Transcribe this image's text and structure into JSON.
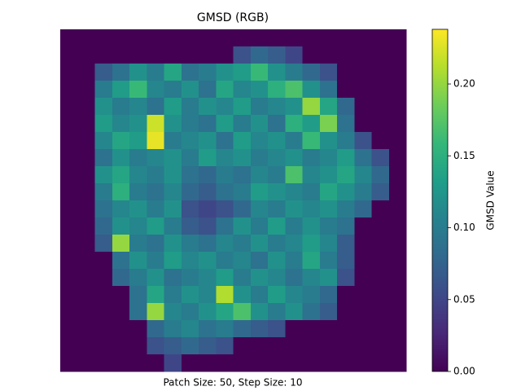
{
  "chart_data": {
    "type": "heatmap",
    "title": "GMSD (RGB)",
    "xlabel": "Patch Size: 50, Step Size: 10",
    "colorbar_label": "GMSD Value",
    "colormap": "viridis",
    "zlim": [
      0,
      0.238
    ],
    "zticks": [
      {
        "value": 0,
        "label": "0.00"
      },
      {
        "value": 0.05,
        "label": "0.05"
      },
      {
        "value": 0.1,
        "label": "0.10"
      },
      {
        "value": 0.15,
        "label": "0.15"
      },
      {
        "value": 0.2,
        "label": "0.20"
      }
    ],
    "values": [
      [
        0,
        0,
        0,
        0,
        0,
        0,
        0,
        0,
        0,
        0,
        0,
        0,
        0,
        0,
        0,
        0,
        0,
        0,
        0,
        0
      ],
      [
        0,
        0,
        0,
        0,
        0,
        0,
        0,
        0,
        0,
        0,
        0.06,
        0.08,
        0.07,
        0.05,
        0,
        0,
        0,
        0,
        0,
        0
      ],
      [
        0,
        0,
        0.07,
        0.09,
        0.12,
        0.1,
        0.14,
        0.09,
        0.1,
        0.12,
        0.13,
        0.16,
        0.12,
        0.1,
        0.08,
        0.06,
        0,
        0,
        0,
        0
      ],
      [
        0,
        0,
        0.1,
        0.13,
        0.16,
        0.11,
        0.1,
        0.12,
        0.09,
        0.14,
        0.11,
        0.12,
        0.15,
        0.17,
        0.12,
        0.09,
        0,
        0,
        0,
        0
      ],
      [
        0,
        0,
        0.12,
        0.1,
        0.11,
        0.09,
        0.13,
        0.1,
        0.12,
        0.11,
        0.13,
        0.1,
        0.11,
        0.12,
        0.2,
        0.14,
        0.08,
        0,
        0,
        0
      ],
      [
        0,
        0,
        0.13,
        0.11,
        0.12,
        0.22,
        0.12,
        0.1,
        0.09,
        0.13,
        0.1,
        0.12,
        0.09,
        0.15,
        0.13,
        0.19,
        0.09,
        0,
        0,
        0
      ],
      [
        0,
        0,
        0.11,
        0.14,
        0.13,
        0.23,
        0.1,
        0.11,
        0.12,
        0.09,
        0.13,
        0.11,
        0.12,
        0.1,
        0.16,
        0.12,
        0.1,
        0.06,
        0,
        0
      ],
      [
        0,
        0,
        0.09,
        0.12,
        0.1,
        0.11,
        0.12,
        0.1,
        0.13,
        0.11,
        0.12,
        0.1,
        0.11,
        0.12,
        0.1,
        0.11,
        0.13,
        0.09,
        0.06,
        0
      ],
      [
        0,
        0,
        0.12,
        0.14,
        0.11,
        0.1,
        0.12,
        0.09,
        0.08,
        0.1,
        0.09,
        0.11,
        0.1,
        0.17,
        0.11,
        0.12,
        0.14,
        0.11,
        0.08,
        0
      ],
      [
        0,
        0,
        0.1,
        0.15,
        0.1,
        0.09,
        0.11,
        0.08,
        0.07,
        0.09,
        0.1,
        0.13,
        0.12,
        0.11,
        0.1,
        0.14,
        0.12,
        0.1,
        0.07,
        0
      ],
      [
        0,
        0,
        0.09,
        0.11,
        0.12,
        0.1,
        0.12,
        0.06,
        0.05,
        0.06,
        0.08,
        0.11,
        0.1,
        0.12,
        0.11,
        0.12,
        0.1,
        0.08,
        0,
        0
      ],
      [
        0,
        0,
        0.08,
        0.12,
        0.11,
        0.13,
        0.1,
        0.07,
        0.06,
        0.09,
        0.12,
        0.1,
        0.13,
        0.1,
        0.12,
        0.1,
        0.09,
        0,
        0,
        0
      ],
      [
        0,
        0,
        0.07,
        0.2,
        0.1,
        0.09,
        0.12,
        0.1,
        0.09,
        0.11,
        0.1,
        0.12,
        0.1,
        0.11,
        0.13,
        0.11,
        0.07,
        0,
        0,
        0
      ],
      [
        0,
        0,
        0,
        0.09,
        0.12,
        0.1,
        0.13,
        0.11,
        0.12,
        0.1,
        0.11,
        0.09,
        0.12,
        0.1,
        0.14,
        0.1,
        0.07,
        0,
        0,
        0
      ],
      [
        0,
        0,
        0,
        0.08,
        0.1,
        0.12,
        0.09,
        0.1,
        0.11,
        0.13,
        0.1,
        0.12,
        0.11,
        0.09,
        0.11,
        0.12,
        0.06,
        0,
        0,
        0
      ],
      [
        0,
        0,
        0,
        0,
        0.09,
        0.14,
        0.1,
        0.12,
        0.11,
        0.21,
        0.12,
        0.1,
        0.13,
        0.11,
        0.1,
        0.08,
        0,
        0,
        0,
        0
      ],
      [
        0,
        0,
        0,
        0,
        0.09,
        0.2,
        0.11,
        0.1,
        0.12,
        0.14,
        0.17,
        0.12,
        0.1,
        0.12,
        0.09,
        0.07,
        0,
        0,
        0,
        0
      ],
      [
        0,
        0,
        0,
        0,
        0,
        0.08,
        0.1,
        0.11,
        0.09,
        0.1,
        0.08,
        0.07,
        0.06,
        0,
        0,
        0,
        0,
        0,
        0,
        0
      ],
      [
        0,
        0,
        0,
        0,
        0,
        0.06,
        0.07,
        0.08,
        0.07,
        0.06,
        0,
        0,
        0,
        0,
        0,
        0,
        0,
        0,
        0,
        0
      ],
      [
        0,
        0,
        0,
        0,
        0,
        0,
        0.05,
        0,
        0,
        0,
        0,
        0,
        0,
        0,
        0,
        0,
        0,
        0,
        0,
        0
      ]
    ]
  }
}
